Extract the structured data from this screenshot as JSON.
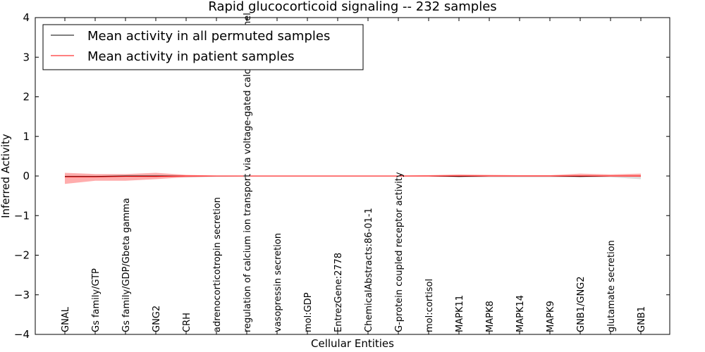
{
  "chart_data": {
    "type": "line",
    "title": "Rapid glucocorticoid signaling -- 232 samples",
    "xlabel": "Cellular Entities",
    "ylabel": "Inferred Activity",
    "ylim": [
      -4,
      4
    ],
    "yticks": [
      {
        "value": 4,
        "label": "4"
      },
      {
        "value": 3,
        "label": "3"
      },
      {
        "value": 2,
        "label": "2"
      },
      {
        "value": 1,
        "label": "1"
      },
      {
        "value": 0,
        "label": "0"
      },
      {
        "value": -1,
        "label": "−1"
      },
      {
        "value": -2,
        "label": "−2"
      },
      {
        "value": -3,
        "label": "−3"
      },
      {
        "value": -4,
        "label": "−4"
      }
    ],
    "categories": [
      "GNAL",
      "Gs family/GTP",
      "Gs family/GDP/Gbeta gamma",
      "GNG2",
      "CRH",
      "adrenocorticotropin secretion",
      "regulation of calcium ion transport via voltage-gated calcium channel",
      "vasopressin secretion",
      "mol:GDP",
      "EntrezGene:2778",
      "ChemicalAbstracts:86-01-1",
      "G-protein coupled receptor activity",
      "mol:cortisol",
      "MAPK11",
      "MAPK8",
      "MAPK14",
      "MAPK9",
      "GNB1/GNG2",
      "glutamate secretion",
      "GNB1"
    ],
    "legend": {
      "location": "top-left",
      "entries": [
        {
          "label": "Mean activity in all permuted samples",
          "color": "#000000"
        },
        {
          "label": "Mean activity in patient samples",
          "color": "#ff0000"
        }
      ]
    },
    "series": [
      {
        "name": "Mean activity in all permuted samples",
        "color": "#000000",
        "values": [
          -0.01,
          -0.01,
          0,
          0,
          0,
          0,
          0,
          0,
          0,
          0,
          0,
          0,
          0,
          -0.01,
          0,
          0,
          0,
          -0.01,
          0,
          0
        ],
        "band_upper": [
          0.03,
          0.02,
          0.02,
          0.02,
          0.01,
          0.01,
          0.01,
          0.01,
          0.01,
          0.01,
          0.01,
          0.01,
          0.01,
          0.02,
          0.01,
          0.01,
          0.01,
          0.02,
          0.01,
          0.03
        ],
        "band_lower": [
          -0.05,
          -0.05,
          -0.04,
          -0.04,
          -0.04,
          -0.02,
          -0.01,
          -0.01,
          -0.01,
          -0.01,
          -0.01,
          -0.01,
          -0.01,
          -0.04,
          -0.03,
          -0.03,
          -0.03,
          -0.04,
          -0.03,
          -0.08
        ],
        "band_color": "#c0c0c0"
      },
      {
        "name": "Mean activity in patient samples",
        "color": "#ff0000",
        "values": [
          -0.02,
          -0.02,
          -0.01,
          -0.01,
          0,
          0,
          0,
          0,
          0,
          0,
          0,
          0,
          0,
          0,
          0,
          0,
          0,
          0,
          0,
          0
        ],
        "band_upper": [
          0.08,
          0.05,
          0.05,
          0.08,
          0.03,
          0.01,
          0.01,
          0.01,
          0.01,
          0.01,
          0.01,
          0.01,
          0.02,
          0.04,
          0.03,
          0.02,
          0.02,
          0.06,
          0.04,
          0.06
        ],
        "band_lower": [
          -0.2,
          -0.12,
          -0.12,
          -0.08,
          -0.03,
          -0.01,
          -0.01,
          -0.01,
          -0.01,
          -0.01,
          -0.01,
          -0.01,
          -0.01,
          -0.02,
          -0.01,
          -0.01,
          -0.01,
          -0.02,
          -0.01,
          -0.02
        ],
        "band_color": "#ff9999"
      }
    ]
  }
}
